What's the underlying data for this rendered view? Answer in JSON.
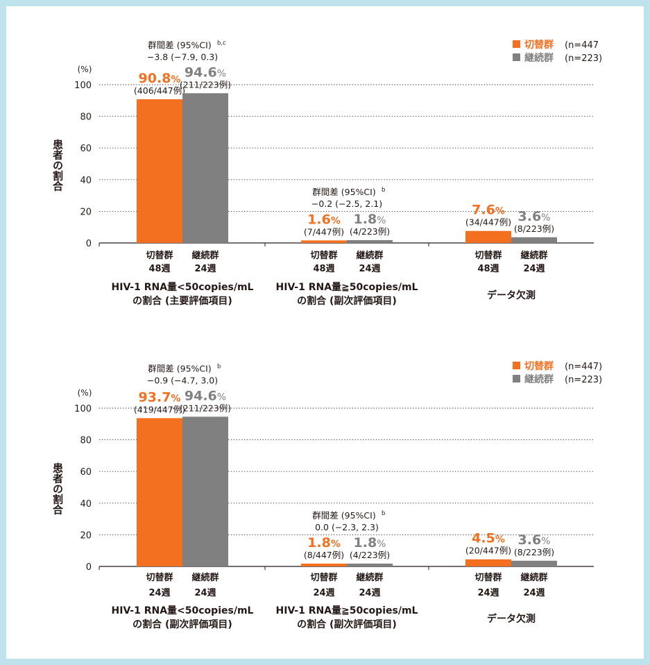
{
  "colors": {
    "switch": "#f37021",
    "continue": "#808080",
    "text": "#231815",
    "grid": "#231815",
    "frame": "#bfe3ec"
  },
  "chart_data": [
    {
      "type": "bar",
      "y_unit_label": "(%)",
      "ylabel": "患者の割合",
      "ylim": [
        0,
        100
      ],
      "yticks": [
        "0",
        "20",
        "40",
        "60",
        "80",
        "100"
      ],
      "legend": [
        {
          "label": "切替群",
          "n": "(n=447",
          "color": "#f37021"
        },
        {
          "label": "継続群",
          "n": "(n=223)",
          "color": "#808080"
        }
      ],
      "groups": [
        {
          "category_lines": [
            "HIV-1 RNA量<50copies/mL",
            "の割合 (主要評価項目)"
          ],
          "diff_lines": [
            "群間差 (95%CI)",
            "−3.8 (−7.9, 0.3)"
          ],
          "diff_sup": "b,c",
          "bars": [
            {
              "series": "switch",
              "value": 90.8,
              "value_num": "90.8",
              "pct": "%",
              "count": "(406/447例)",
              "xlabel": [
                "切替群",
                "48週"
              ]
            },
            {
              "series": "continue",
              "value": 94.6,
              "value_num": "94.6",
              "pct": "%",
              "count": "(211/223例)",
              "xlabel": [
                "継続群",
                "24週"
              ]
            }
          ]
        },
        {
          "category_lines": [
            "HIV-1 RNA量≧50copies/mL",
            "の割合 (副次評価項目)"
          ],
          "diff_lines": [
            "群間差 (95%CI)",
            "−0.2 (−2.5, 2.1)"
          ],
          "diff_sup": "b",
          "bars": [
            {
              "series": "switch",
              "value": 1.6,
              "value_num": "1.6",
              "pct": "%",
              "count": "(7/447例)",
              "xlabel": [
                "切替群",
                "48週"
              ]
            },
            {
              "series": "continue",
              "value": 1.8,
              "value_num": "1.8",
              "pct": "%",
              "count": "(4/223例)",
              "xlabel": [
                "継続群",
                "24週"
              ]
            }
          ]
        },
        {
          "category_lines": [
            "データ欠測"
          ],
          "diff_lines": [],
          "diff_sup": "",
          "bars": [
            {
              "series": "switch",
              "value": 7.6,
              "value_num": "7.6",
              "pct": "%",
              "count": "(34/447例)",
              "xlabel": [
                "切替群",
                "48週"
              ]
            },
            {
              "series": "continue",
              "value": 3.6,
              "value_num": "3.6",
              "pct": "%",
              "count": "(8/223例)",
              "xlabel": [
                "継続群",
                "24週"
              ]
            }
          ]
        }
      ]
    },
    {
      "type": "bar",
      "y_unit_label": "(%)",
      "ylabel": "患者の割合",
      "ylim": [
        0,
        100
      ],
      "yticks": [
        "0",
        "20",
        "40",
        "60",
        "80",
        "100"
      ],
      "legend": [
        {
          "label": "切替群",
          "n": "(n=447)",
          "color": "#f37021"
        },
        {
          "label": "継続群",
          "n": "(n=223)",
          "color": "#808080"
        }
      ],
      "groups": [
        {
          "category_lines": [
            "HIV-1 RNA量<50copies/mL",
            "の割合 (副次評価項目)"
          ],
          "diff_lines": [
            "群間差 (95%CI)",
            "−0.9 (−4.7, 3.0)"
          ],
          "diff_sup": "b",
          "bars": [
            {
              "series": "switch",
              "value": 93.7,
              "value_num": "93.7",
              "pct": "%",
              "count": "(419/447例)",
              "xlabel": [
                "切替群",
                "24週"
              ]
            },
            {
              "series": "continue",
              "value": 94.6,
              "value_num": "94.6",
              "pct": "%",
              "count": "(211/223例)",
              "xlabel": [
                "継続群",
                "24週"
              ]
            }
          ]
        },
        {
          "category_lines": [
            "HIV-1 RNA量≧50copies/mL",
            "の割合 (副次評価項目)"
          ],
          "diff_lines": [
            "群間差 (95%CI)",
            "0.0 (−2.3, 2.3)"
          ],
          "diff_sup": "b",
          "bars": [
            {
              "series": "switch",
              "value": 1.8,
              "value_num": "1.8",
              "pct": "%",
              "count": "(8/447例)",
              "xlabel": [
                "切替群",
                "24週"
              ]
            },
            {
              "series": "continue",
              "value": 1.8,
              "value_num": "1.8",
              "pct": "%",
              "count": "(4/223例)",
              "xlabel": [
                "継続群",
                "24週"
              ]
            }
          ]
        },
        {
          "category_lines": [
            "データ欠測"
          ],
          "diff_lines": [],
          "diff_sup": "",
          "bars": [
            {
              "series": "switch",
              "value": 4.5,
              "value_num": "4.5",
              "pct": "%",
              "count": "(20/447例)",
              "xlabel": [
                "切替群",
                "24週"
              ]
            },
            {
              "series": "continue",
              "value": 3.6,
              "value_num": "3.6",
              "pct": "%",
              "count": "(8/223例)",
              "xlabel": [
                "継続群",
                "24週"
              ]
            }
          ]
        }
      ]
    }
  ]
}
